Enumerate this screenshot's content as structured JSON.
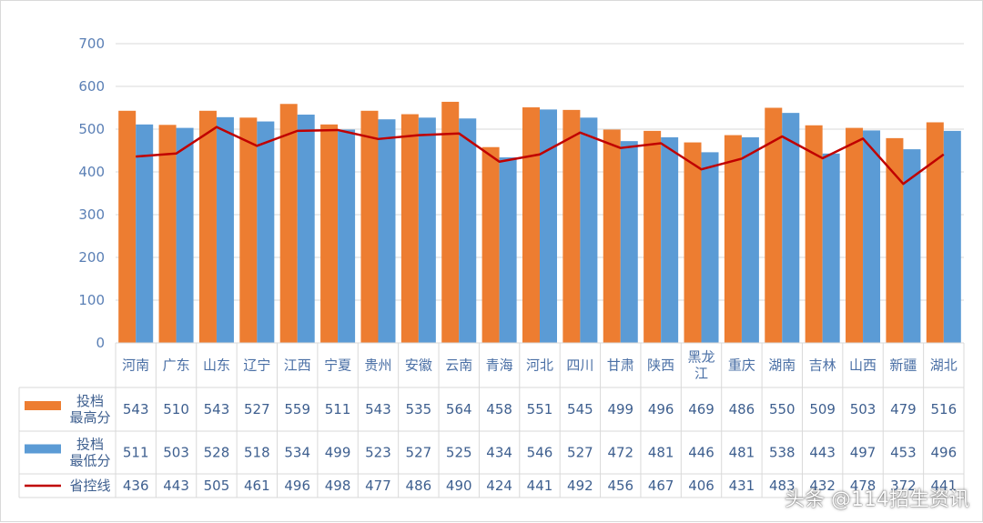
{
  "colors": {
    "highest": "#ed7d31",
    "lowest": "#5b9bd5",
    "control": "#c00000",
    "grid": "#d9d9d9",
    "text": "#4a6fa5"
  },
  "watermark": "头条 @114招生资讯",
  "chart_data": {
    "type": "bar",
    "y_ticks": [
      "0",
      "100",
      "200",
      "300",
      "400",
      "500",
      "600",
      "700"
    ],
    "ylim": [
      0,
      700
    ],
    "grid": true,
    "categories": [
      "河南",
      "广东",
      "山东",
      "辽宁",
      "江西",
      "宁夏",
      "贵州",
      "安徽",
      "云南",
      "青海",
      "河北",
      "四川",
      "甘肃",
      "陕西",
      "黑龙江",
      "重庆",
      "湖南",
      "吉林",
      "山西",
      "新疆",
      "湖北"
    ],
    "category_lines": [
      [
        "河南"
      ],
      [
        "广东"
      ],
      [
        "山东"
      ],
      [
        "辽宁"
      ],
      [
        "江西"
      ],
      [
        "宁夏"
      ],
      [
        "贵州"
      ],
      [
        "安徽"
      ],
      [
        "云南"
      ],
      [
        "青海"
      ],
      [
        "河北"
      ],
      [
        "四川"
      ],
      [
        "甘肃"
      ],
      [
        "陕西"
      ],
      [
        "黑龙",
        "江"
      ],
      [
        "重庆"
      ],
      [
        "湖南"
      ],
      [
        "吉林"
      ],
      [
        "山西"
      ],
      [
        "新疆"
      ],
      [
        "湖北"
      ]
    ],
    "series": [
      {
        "key": "highest",
        "type": "bar",
        "name": "投档最高分",
        "name_lines": [
          "投档",
          "最高分"
        ],
        "values": [
          543,
          510,
          543,
          527,
          559,
          511,
          543,
          535,
          564,
          458,
          551,
          545,
          499,
          496,
          469,
          486,
          550,
          509,
          503,
          479,
          516
        ]
      },
      {
        "key": "lowest",
        "type": "bar",
        "name": "投档最低分",
        "name_lines": [
          "投档",
          "最低分"
        ],
        "values": [
          511,
          503,
          528,
          518,
          534,
          499,
          523,
          527,
          525,
          434,
          546,
          527,
          472,
          481,
          446,
          481,
          538,
          443,
          497,
          453,
          496
        ]
      },
      {
        "key": "control",
        "type": "line",
        "name": "省控线",
        "name_lines": [
          "省控线"
        ],
        "values": [
          436,
          443,
          505,
          461,
          496,
          498,
          477,
          486,
          490,
          424,
          441,
          492,
          456,
          467,
          406,
          431,
          483,
          432,
          478,
          372,
          441
        ]
      }
    ],
    "data_table": true,
    "legend": "data-table"
  }
}
